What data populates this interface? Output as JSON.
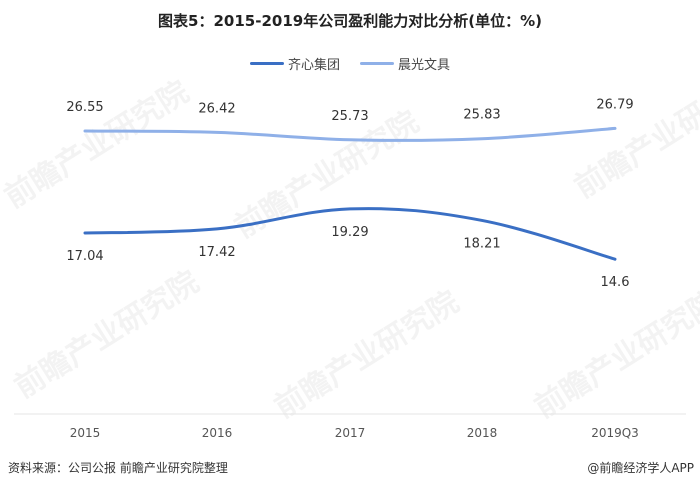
{
  "title": "图表5：2015-2019年公司盈利能力对比分析(单位：%)",
  "legend": [
    {
      "label": "齐心集团",
      "color": "#3a6fc4"
    },
    {
      "label": "晨光文具",
      "color": "#8fb0e8"
    }
  ],
  "chart_data": {
    "type": "line",
    "title": "图表5：2015-2019年公司盈利能力对比分析(单位：%)",
    "categories": [
      "2015",
      "2016",
      "2017",
      "2018",
      "2019Q3"
    ],
    "series": [
      {
        "name": "齐心集团",
        "values": [
          17.04,
          17.42,
          19.29,
          18.21,
          14.6
        ],
        "labels": [
          "17.04",
          "17.42",
          "19.29",
          "18.21",
          "14.6"
        ],
        "color": "#3a6fc4"
      },
      {
        "name": "晨光文具",
        "values": [
          26.55,
          26.42,
          25.73,
          25.83,
          26.79
        ],
        "labels": [
          "26.55",
          "26.42",
          "25.73",
          "25.83",
          "26.79"
        ],
        "color": "#8fb0e8"
      }
    ],
    "xlabel": "",
    "ylabel": "",
    "grid": false,
    "legend_position": "top",
    "smooth": true,
    "ylim": [
      0,
      30
    ]
  },
  "footer": {
    "source": "资料来源：公司公报 前瞻产业研究院整理",
    "credit": "@前瞻经济学人APP"
  },
  "watermark": "前瞻产业研究院"
}
